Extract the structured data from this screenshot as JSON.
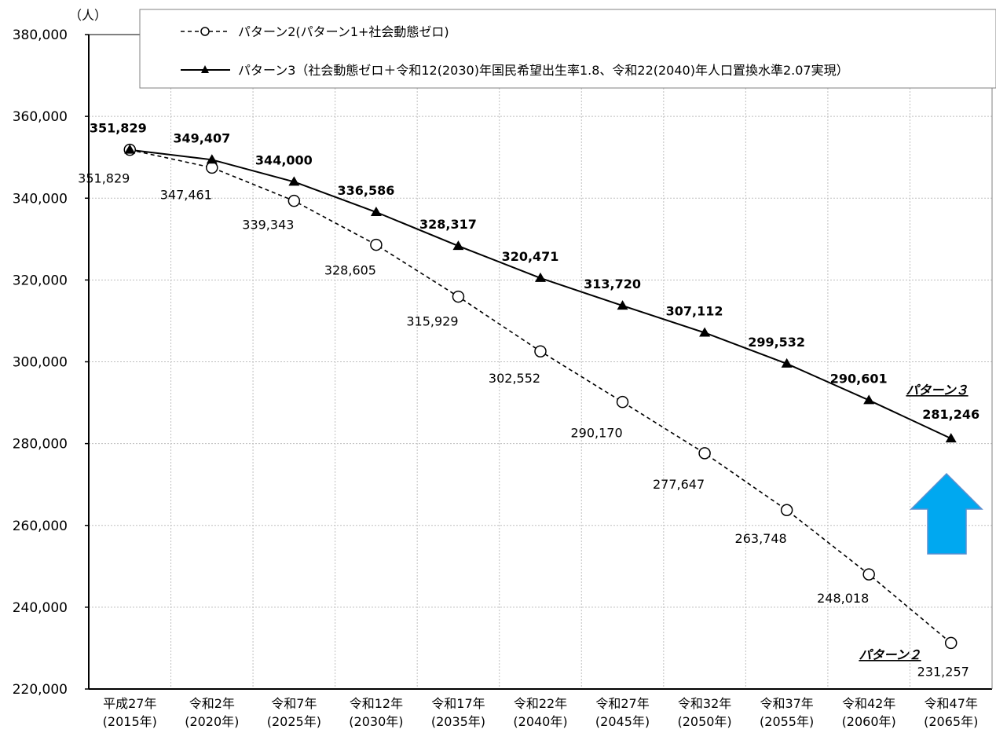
{
  "chart_data": {
    "type": "line",
    "unit_label": "（人）",
    "ylim": [
      220000,
      380000
    ],
    "yticks": [
      220000,
      240000,
      260000,
      280000,
      300000,
      320000,
      340000,
      360000,
      380000
    ],
    "ytick_labels": [
      "220,000",
      "240,000",
      "260,000",
      "280,000",
      "300,000",
      "320,000",
      "340,000",
      "360,000",
      "380,000"
    ],
    "grid": true,
    "legend_position": "top",
    "categories": [
      {
        "line1": "平成27年",
        "line2": "(2015年)"
      },
      {
        "line1": "令和2年",
        "line2": "(2020年)"
      },
      {
        "line1": "令和7年",
        "line2": "(2025年)"
      },
      {
        "line1": "令和12年",
        "line2": "(2030年)"
      },
      {
        "line1": "令和17年",
        "line2": "(2035年)"
      },
      {
        "line1": "令和22年",
        "line2": "(2040年)"
      },
      {
        "line1": "令和27年",
        "line2": "(2045年)"
      },
      {
        "line1": "令和32年",
        "line2": "(2050年)"
      },
      {
        "line1": "令和37年",
        "line2": "(2055年)"
      },
      {
        "line1": "令和42年",
        "line2": "(2060年)"
      },
      {
        "line1": "令和47年",
        "line2": "(2065年)"
      }
    ],
    "series": [
      {
        "name": "パターン2(パターン1+社会動態ゼロ)",
        "tag": "パターン２",
        "style": "dashed",
        "marker": "circle",
        "values": [
          351829,
          347461,
          339343,
          328605,
          315929,
          302552,
          290170,
          277647,
          263748,
          248018,
          231257
        ],
        "labels": [
          "351,829",
          "347,461",
          "339,343",
          "328,605",
          "315,929",
          "302,552",
          "290,170",
          "277,647",
          "263,748",
          "248,018",
          "231,257"
        ]
      },
      {
        "name": "パターン3（社会動態ゼロ＋令和12(2030)年国民希望出生率1.8、令和22(2040)年人口置換水準2.07実現）",
        "tag": "パターン３",
        "style": "solid",
        "marker": "triangle",
        "values": [
          351829,
          349407,
          344000,
          336586,
          328317,
          320471,
          313720,
          307112,
          299532,
          290601,
          281246
        ],
        "labels": [
          "351,829",
          "349,407",
          "344,000",
          "336,586",
          "328,317",
          "320,471",
          "313,720",
          "307,112",
          "299,532",
          "290,601",
          "281,246"
        ]
      }
    ],
    "colors": {
      "line": "#000000",
      "grid": "#bfbfbf",
      "arrow_fill": "#00a8f0",
      "arrow_stroke": "#5b8fd0"
    }
  }
}
